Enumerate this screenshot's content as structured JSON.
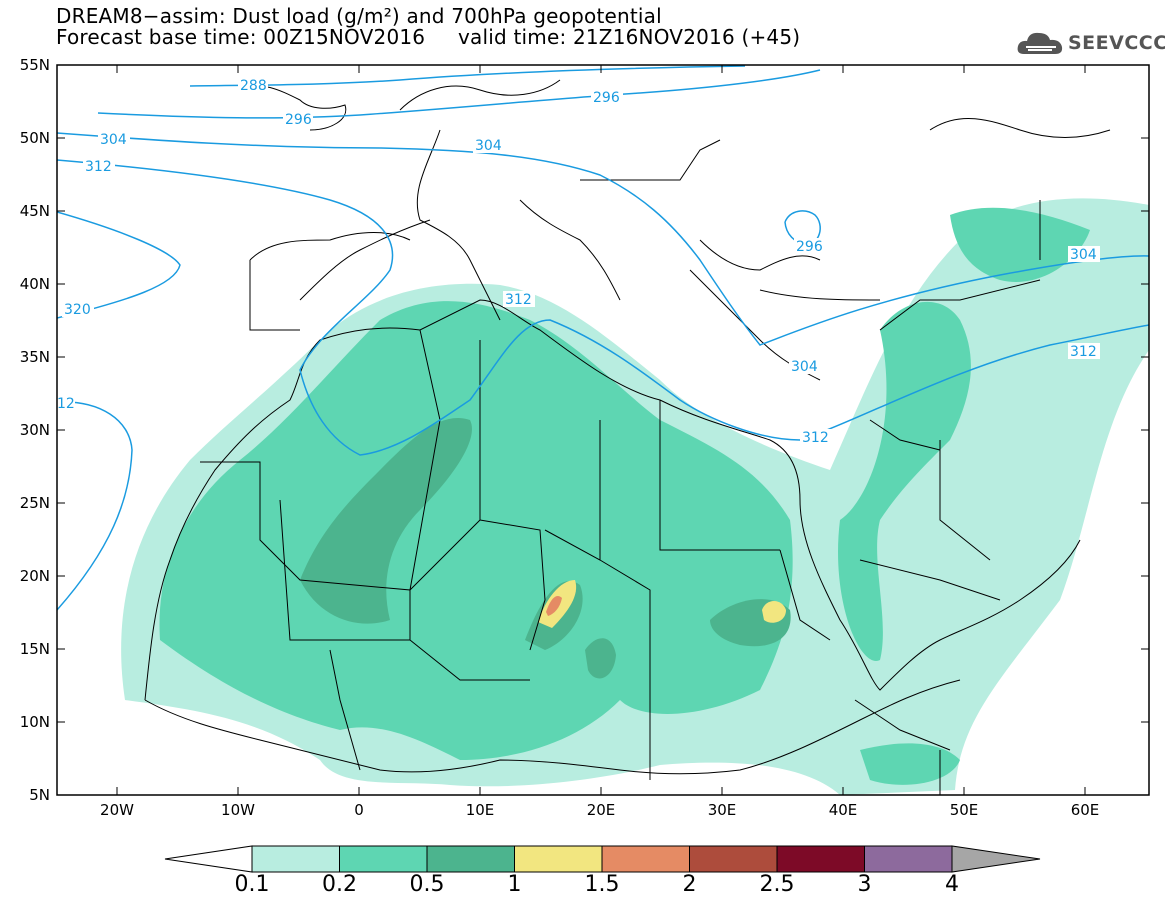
{
  "title": {
    "line1": "DREAM8−assim: Dust load (g/m²) and 700hPa geopotential",
    "line2": "Forecast base time: 00Z15NOV2016     valid time: 21Z16NOV2016 (+45)"
  },
  "logo": {
    "text": "SEEVCCC",
    "icon": "cloud-icon"
  },
  "axes": {
    "lat_labels": [
      "55N",
      "50N",
      "45N",
      "40N",
      "35N",
      "30N",
      "25N",
      "20N",
      "15N",
      "10N",
      "5N"
    ],
    "lon_labels": [
      "20W",
      "10W",
      "0",
      "10E",
      "20E",
      "30E",
      "40E",
      "50E",
      "60E"
    ]
  },
  "contour_labels": [
    "288",
    "296",
    "304",
    "312",
    "320",
    "12",
    "304",
    "312",
    "296",
    "304",
    "312",
    "304",
    "312",
    "296"
  ],
  "colorbar": {
    "labels": [
      "0.1",
      "0.2",
      "0.5",
      "1",
      "1.5",
      "2",
      "2.5",
      "3",
      "4"
    ],
    "colors": [
      "#b8ede0",
      "#5ed6b2",
      "#4cb48e",
      "#f2e680",
      "#e58b64",
      "#ad4c3c",
      "#7d0a27",
      "#8d6a9d",
      "#a6a6a6"
    ]
  },
  "colors": {
    "contour": "#1a9be0",
    "land_border": "#000000"
  }
}
